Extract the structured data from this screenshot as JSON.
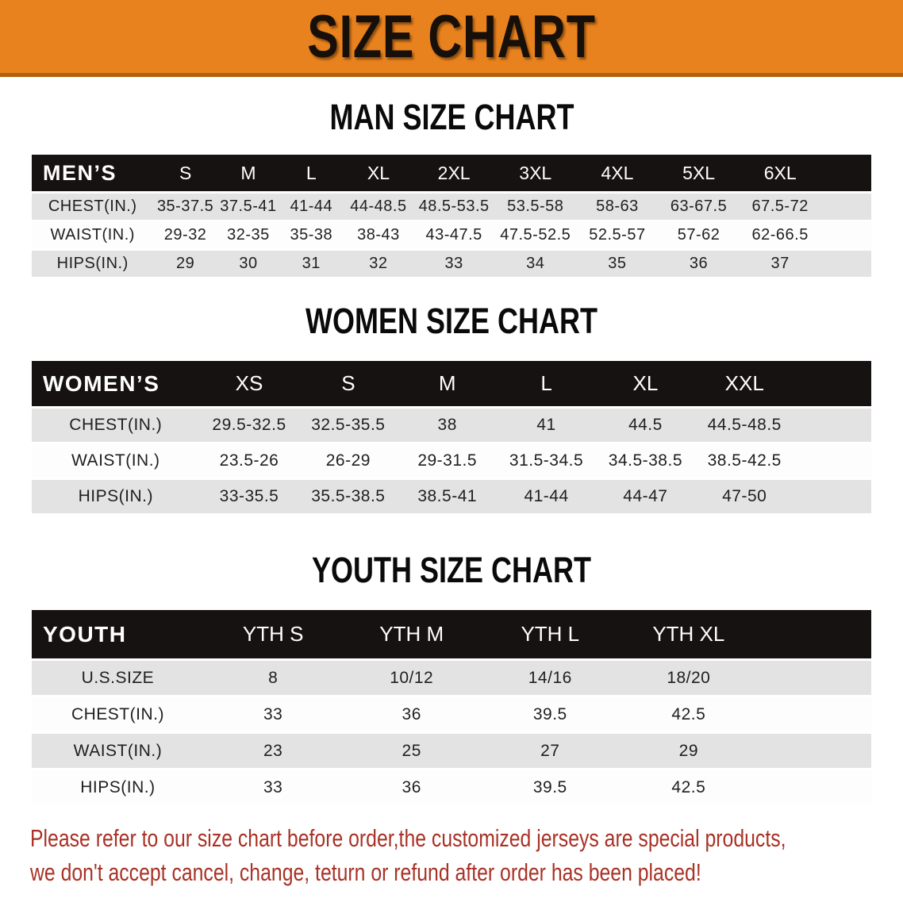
{
  "banner": {
    "title": "SIZE CHART",
    "bg_color": "#E8821E"
  },
  "sections": [
    {
      "id": "men",
      "title": "MAN SIZE CHART",
      "header_label": "MEN’S",
      "columns": [
        "S",
        "M",
        "L",
        "XL",
        "2XL",
        "3XL",
        "4XL",
        "5XL",
        "6XL"
      ],
      "rows": [
        {
          "label": "CHEST(IN.)",
          "values": [
            "35-37.5",
            "37.5-41",
            "41-44",
            "44-48.5",
            "48.5-53.5",
            "53.5-58",
            "58-63",
            "63-67.5",
            "67.5-72"
          ]
        },
        {
          "label": "WAIST(IN.)",
          "values": [
            "29-32",
            "32-35",
            "35-38",
            "38-43",
            "43-47.5",
            "47.5-52.5",
            "52.5-57",
            "57-62",
            "62-66.5"
          ]
        },
        {
          "label": "HIPS(IN.)",
          "values": [
            "29",
            "30",
            "31",
            "32",
            "33",
            "34",
            "35",
            "36",
            "37"
          ]
        }
      ]
    },
    {
      "id": "women",
      "title": "WOMEN SIZE CHART",
      "header_label": "WOMEN’S",
      "columns": [
        "XS",
        "S",
        "M",
        "L",
        "XL",
        "XXL"
      ],
      "rows": [
        {
          "label": "CHEST(IN.)",
          "values": [
            "29.5-32.5",
            "32.5-35.5",
            "38",
            "41",
            "44.5",
            "44.5-48.5"
          ]
        },
        {
          "label": "WAIST(IN.)",
          "values": [
            "23.5-26",
            "26-29",
            "29-31.5",
            "31.5-34.5",
            "34.5-38.5",
            "38.5-42.5"
          ]
        },
        {
          "label": "HIPS(IN.)",
          "values": [
            "33-35.5",
            "35.5-38.5",
            "38.5-41",
            "41-44",
            "44-47",
            "47-50"
          ]
        }
      ]
    },
    {
      "id": "youth",
      "title": "YOUTH SIZE CHART",
      "header_label": "YOUTH",
      "columns": [
        "YTH S",
        "YTH M",
        "YTH L",
        "YTH XL"
      ],
      "rows": [
        {
          "label": "U.S.SIZE",
          "values": [
            "8",
            "10/12",
            "14/16",
            "18/20"
          ]
        },
        {
          "label": "CHEST(IN.)",
          "values": [
            "33",
            "36",
            "39.5",
            "42.5"
          ]
        },
        {
          "label": "WAIST(IN.)",
          "values": [
            "23",
            "25",
            "27",
            "29"
          ]
        },
        {
          "label": "HIPS(IN.)",
          "values": [
            "33",
            "36",
            "39.5",
            "42.5"
          ]
        }
      ]
    }
  ],
  "footer": {
    "line1": "Please refer to our size chart before order,the customized jerseys are special products,",
    "line2": "we don't accept cancel, change, teturn or refund after order has been placed!",
    "color": "#A93226"
  }
}
